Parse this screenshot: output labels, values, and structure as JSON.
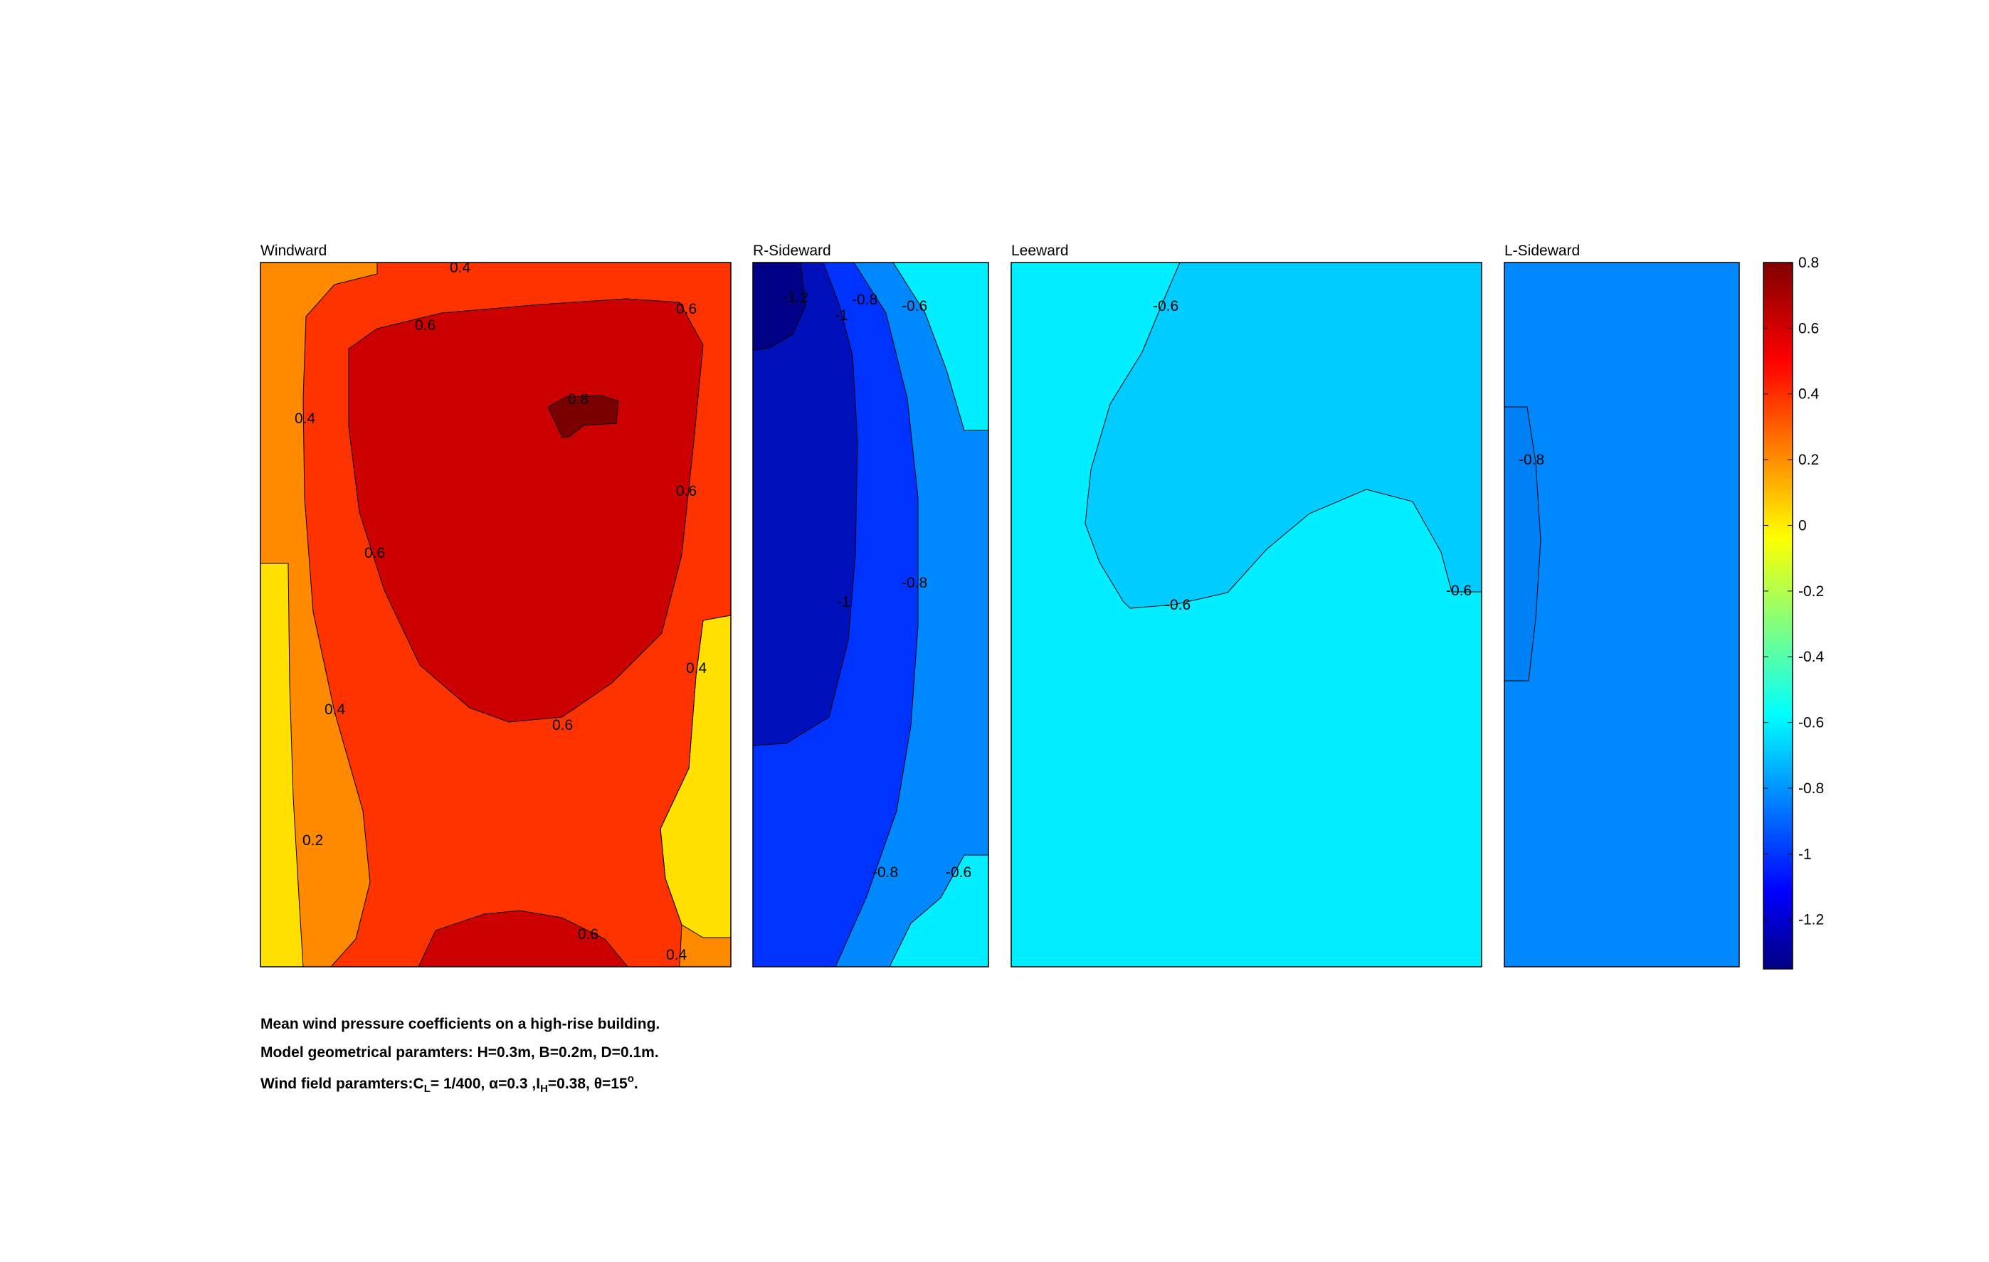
{
  "colors": {
    "colormap": "jet",
    "frame": "#000000",
    "contour_line": "#000000"
  },
  "chart_data": [
    {
      "type": "contour",
      "title": "Windward",
      "levels": [
        0.2,
        0.4,
        0.6,
        0.8
      ],
      "contour_labels": [
        "0.4",
        "0.6",
        "0.6",
        "0.4",
        "0.8",
        "0.6",
        "0.6",
        "0.4",
        "0.4",
        "0.6",
        "0.2",
        "0.6",
        "0.4"
      ],
      "value_range": [
        0.0,
        0.8
      ]
    },
    {
      "type": "contour",
      "title": "R-Sideward",
      "levels": [
        -1.2,
        -1.0,
        -0.8,
        -0.6
      ],
      "contour_labels": [
        "-1.2",
        "-1",
        "-0.8",
        "-0.6",
        "-1",
        "-0.8",
        "-0.8",
        "-0.6"
      ],
      "value_range": [
        -1.3,
        -0.55
      ]
    },
    {
      "type": "contour",
      "title": "Leeward",
      "levels": [
        -0.6
      ],
      "contour_labels": [
        "-0.6",
        "-0.6",
        "-0.6"
      ],
      "value_range": [
        -0.7,
        -0.55
      ]
    },
    {
      "type": "contour",
      "title": "L-Sideward",
      "levels": [
        -0.8
      ],
      "contour_labels": [
        "-0.8"
      ],
      "value_range": [
        -0.85,
        -0.75
      ]
    }
  ],
  "colorbar": {
    "ticks": [
      "0.8",
      "0.6",
      "0.4",
      "0.2",
      "0",
      "-0.2",
      "-0.4",
      "-0.6",
      "-0.8",
      "-1",
      "-1.2"
    ],
    "tick_values": [
      0.8,
      0.6,
      0.4,
      0.2,
      0,
      -0.2,
      -0.4,
      -0.6,
      -0.8,
      -1.0,
      -1.2
    ],
    "range": [
      -1.35,
      0.8
    ]
  },
  "caption": {
    "line1": "Mean wind pressure coefficients on a high-rise building.",
    "line2": "Model geometrical paramters: H=0.3m, B=0.2m, D=0.1m.",
    "line3_prefix": "Wind field paramters:C",
    "line3_sub1": "L",
    "line3_mid1": "= 1/400, α=0.3 ,I",
    "line3_sub2": "H",
    "line3_mid2": "=0.38, θ=15",
    "line3_sup": "o",
    "line3_end": "."
  }
}
